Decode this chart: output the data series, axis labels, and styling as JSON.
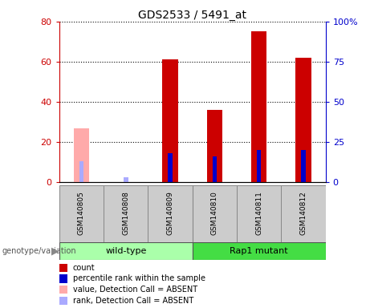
{
  "title": "GDS2533 / 5491_at",
  "samples": [
    "GSM140805",
    "GSM140808",
    "GSM140809",
    "GSM140810",
    "GSM140811",
    "GSM140812"
  ],
  "count_values": [
    null,
    null,
    61,
    36,
    75,
    62
  ],
  "count_absent": [
    27,
    null,
    null,
    null,
    null,
    null
  ],
  "rank_values": [
    null,
    null,
    18,
    16,
    20,
    20
  ],
  "rank_absent": [
    13,
    3,
    null,
    null,
    null,
    null
  ],
  "left_axis_color": "#cc0000",
  "right_axis_color": "#0000cc",
  "left_ticks": [
    0,
    20,
    40,
    60,
    80
  ],
  "right_ticks": [
    0,
    25,
    50,
    75,
    100
  ],
  "right_tick_labels": [
    "0",
    "25",
    "50",
    "75",
    "100%"
  ],
  "left_ylim": [
    0,
    80
  ],
  "right_ylim": [
    0,
    100
  ],
  "count_color": "#cc0000",
  "rank_color": "#0000cc",
  "count_absent_color": "#ffaaaa",
  "rank_absent_color": "#aaaaff",
  "wt_color": "#aaffaa",
  "rap_color": "#44dd44",
  "label_bg": "#cccccc",
  "title_fontsize": 10,
  "legend_items": [
    {
      "color": "#cc0000",
      "label": "count"
    },
    {
      "color": "#0000cc",
      "label": "percentile rank within the sample"
    },
    {
      "color": "#ffaaaa",
      "label": "value, Detection Call = ABSENT"
    },
    {
      "color": "#aaaaff",
      "label": "rank, Detection Call = ABSENT"
    }
  ]
}
